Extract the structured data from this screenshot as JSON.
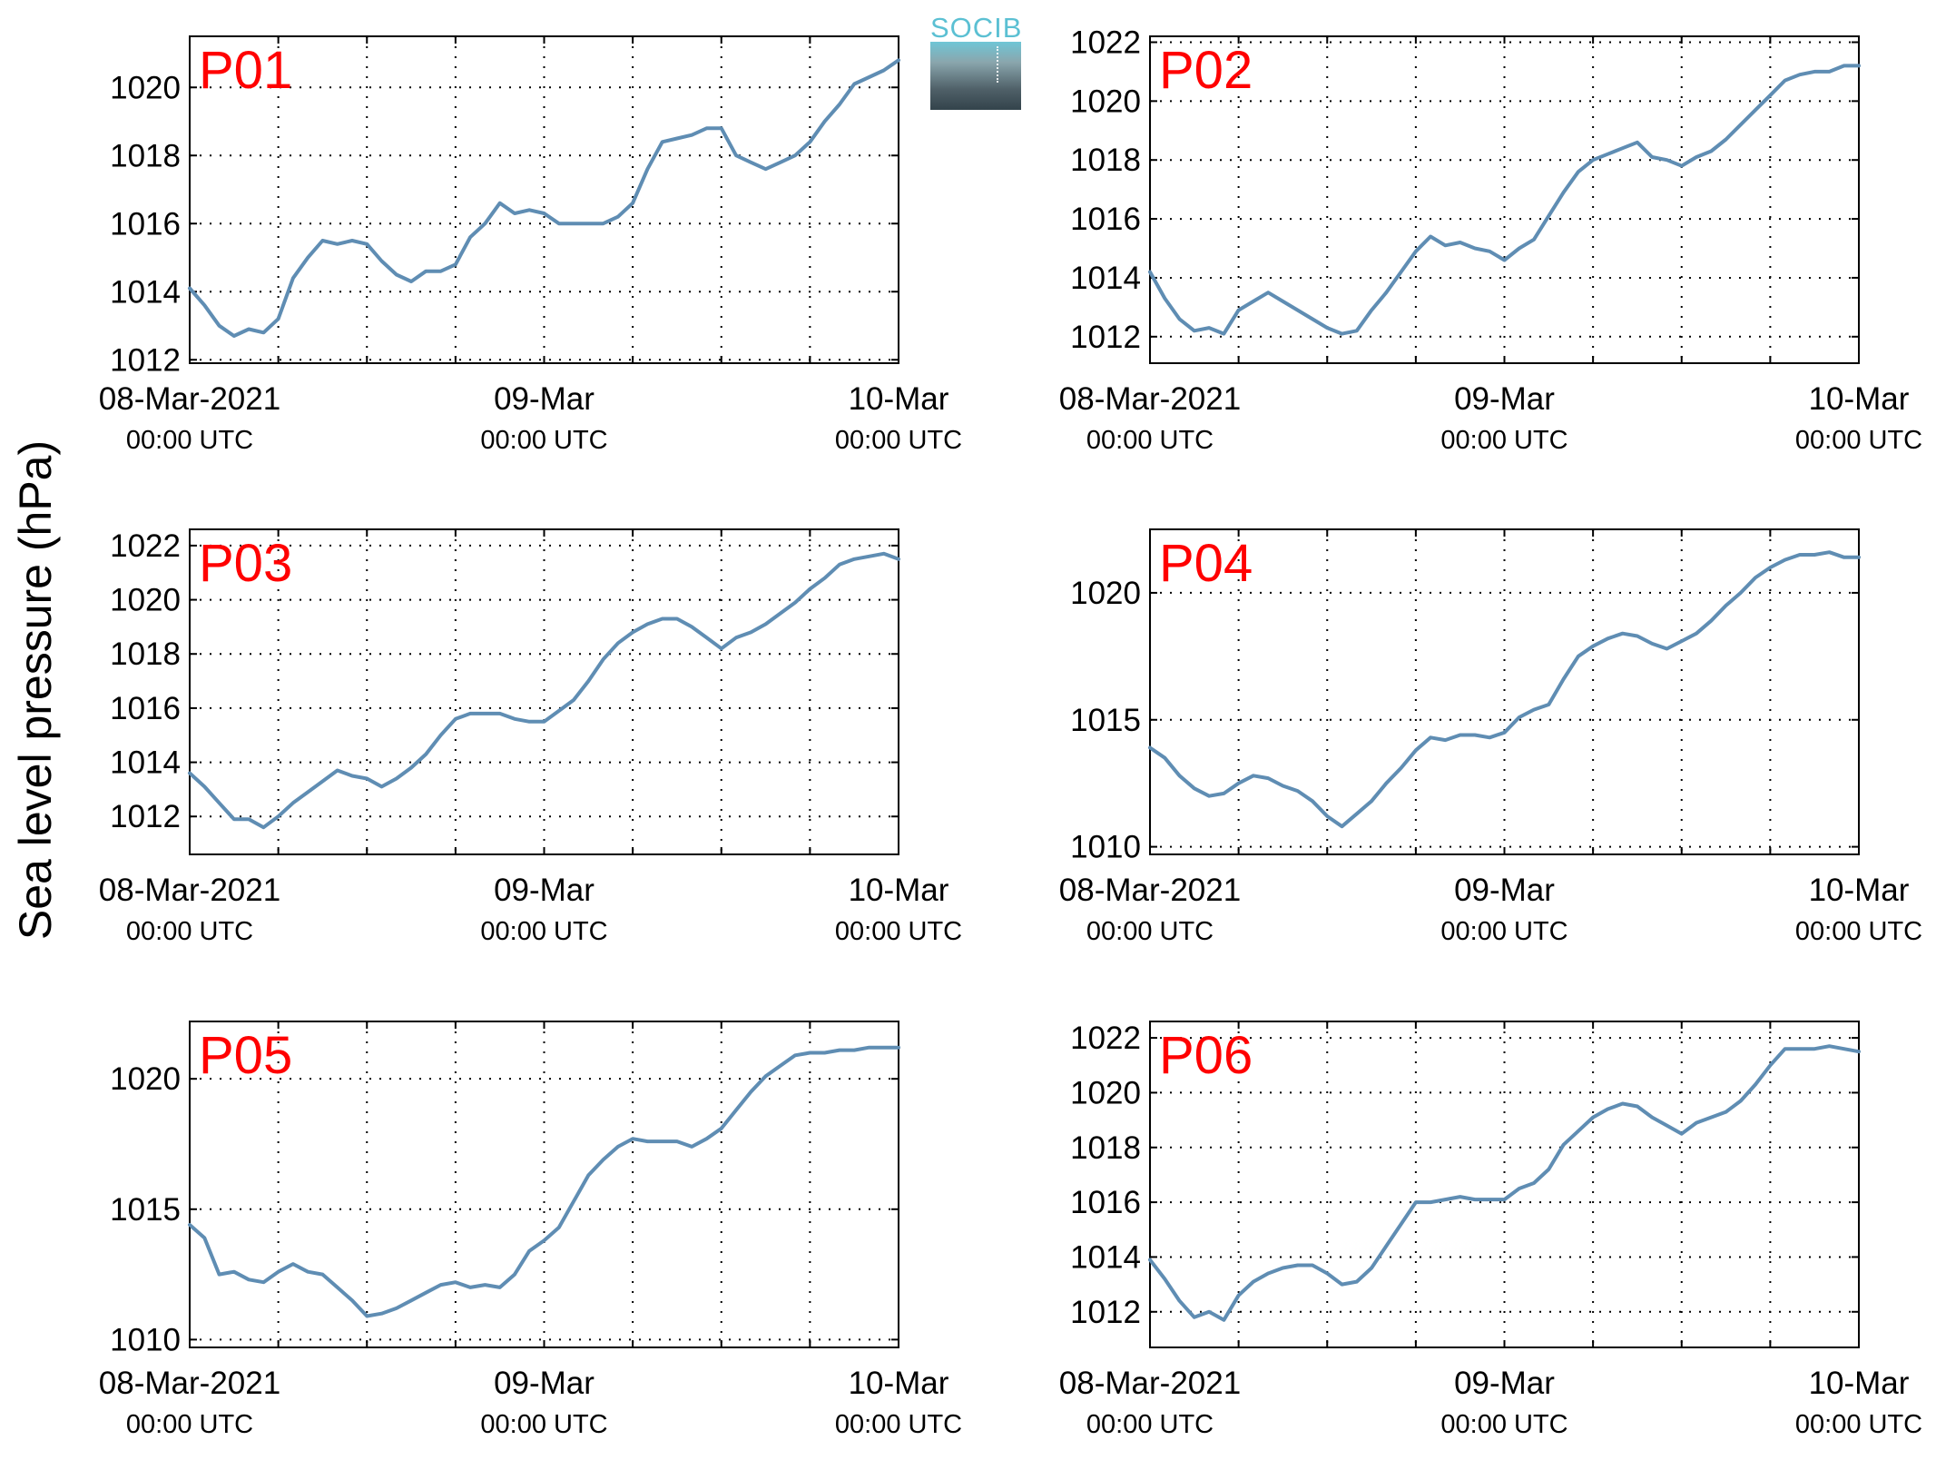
{
  "figure": {
    "ylabel": "Sea level pressure (hPa)",
    "logo_text": "SOCIB"
  },
  "colors": {
    "line": "#5f8db3",
    "panel_label": "#ff0000",
    "grid": "#000000"
  },
  "chart_data": [
    {
      "type": "line",
      "title": "P01",
      "xlabel": "",
      "ylabel": "Sea level pressure (hPa)",
      "x_range_hours": [
        0,
        48
      ],
      "x_ticks": [
        {
          "hour": 0,
          "date": "08-Mar-2021",
          "time": "00:00 UTC"
        },
        {
          "hour": 24,
          "date": "09-Mar",
          "time": "00:00 UTC"
        },
        {
          "hour": 48,
          "date": "10-Mar",
          "time": "00:00 UTC"
        }
      ],
      "ylim": [
        1011.9,
        1021.5
      ],
      "yticks": [
        1012,
        1014,
        1016,
        1018,
        1020
      ],
      "grid": true,
      "x": [
        0,
        1,
        2,
        3,
        4,
        5,
        6,
        7,
        8,
        9,
        10,
        11,
        12,
        13,
        14,
        15,
        16,
        17,
        18,
        19,
        20,
        21,
        22,
        23,
        24,
        25,
        26,
        27,
        28,
        29,
        30,
        31,
        32,
        33,
        34,
        35,
        36,
        37,
        38,
        39,
        40,
        41,
        42,
        43,
        44,
        45,
        46,
        47,
        48
      ],
      "values": [
        1014.1,
        1013.6,
        1013.0,
        1012.7,
        1012.9,
        1012.8,
        1013.2,
        1014.4,
        1015.0,
        1015.5,
        1015.4,
        1015.5,
        1015.4,
        1014.9,
        1014.5,
        1014.3,
        1014.6,
        1014.6,
        1014.8,
        1015.6,
        1016.0,
        1016.6,
        1016.3,
        1016.4,
        1016.3,
        1016.0,
        1016.0,
        1016.0,
        1016.0,
        1016.2,
        1016.6,
        1017.6,
        1018.4,
        1018.5,
        1018.6,
        1018.8,
        1018.8,
        1018.0,
        1017.8,
        1017.6,
        1017.8,
        1018.0,
        1018.4,
        1019.0,
        1019.5,
        1020.1,
        1020.3,
        1020.5,
        1020.8
      ]
    },
    {
      "type": "line",
      "title": "P02",
      "xlabel": "",
      "ylabel": "Sea level pressure (hPa)",
      "x_range_hours": [
        0,
        48
      ],
      "x_ticks": [
        {
          "hour": 0,
          "date": "08-Mar-2021",
          "time": "00:00 UTC"
        },
        {
          "hour": 24,
          "date": "09-Mar",
          "time": "00:00 UTC"
        },
        {
          "hour": 48,
          "date": "10-Mar",
          "time": "00:00 UTC"
        }
      ],
      "ylim": [
        1011.1,
        1022.2
      ],
      "yticks": [
        1012,
        1014,
        1016,
        1018,
        1020,
        1022
      ],
      "grid": true,
      "x": [
        0,
        1,
        2,
        3,
        4,
        5,
        6,
        7,
        8,
        9,
        10,
        11,
        12,
        13,
        14,
        15,
        16,
        17,
        18,
        19,
        20,
        21,
        22,
        23,
        24,
        25,
        26,
        27,
        28,
        29,
        30,
        31,
        32,
        33,
        34,
        35,
        36,
        37,
        38,
        39,
        40,
        41,
        42,
        43,
        44,
        45,
        46,
        47,
        48
      ],
      "values": [
        1014.2,
        1013.3,
        1012.6,
        1012.2,
        1012.3,
        1012.1,
        1012.9,
        1013.2,
        1013.5,
        1013.2,
        1012.9,
        1012.6,
        1012.3,
        1012.1,
        1012.2,
        1012.9,
        1013.5,
        1014.2,
        1014.9,
        1015.4,
        1015.1,
        1015.2,
        1015.0,
        1014.9,
        1014.6,
        1015.0,
        1015.3,
        1016.1,
        1016.9,
        1017.6,
        1018.0,
        1018.2,
        1018.4,
        1018.6,
        1018.1,
        1018.0,
        1017.8,
        1018.1,
        1018.3,
        1018.7,
        1019.2,
        1019.7,
        1020.2,
        1020.7,
        1020.9,
        1021.0,
        1021.0,
        1021.2,
        1021.2
      ]
    },
    {
      "type": "line",
      "title": "P03",
      "xlabel": "",
      "ylabel": "Sea level pressure (hPa)",
      "x_range_hours": [
        0,
        48
      ],
      "x_ticks": [
        {
          "hour": 0,
          "date": "08-Mar-2021",
          "time": "00:00 UTC"
        },
        {
          "hour": 24,
          "date": "09-Mar",
          "time": "00:00 UTC"
        },
        {
          "hour": 48,
          "date": "10-Mar",
          "time": "00:00 UTC"
        }
      ],
      "ylim": [
        1010.6,
        1022.6
      ],
      "yticks": [
        1012,
        1014,
        1016,
        1018,
        1020,
        1022
      ],
      "grid": true,
      "x": [
        0,
        1,
        2,
        3,
        4,
        5,
        6,
        7,
        8,
        9,
        10,
        11,
        12,
        13,
        14,
        15,
        16,
        17,
        18,
        19,
        20,
        21,
        22,
        23,
        24,
        25,
        26,
        27,
        28,
        29,
        30,
        31,
        32,
        33,
        34,
        35,
        36,
        37,
        38,
        39,
        40,
        41,
        42,
        43,
        44,
        45,
        46,
        47,
        48
      ],
      "values": [
        1013.6,
        1013.1,
        1012.5,
        1011.9,
        1011.9,
        1011.6,
        1012.0,
        1012.5,
        1012.9,
        1013.3,
        1013.7,
        1013.5,
        1013.4,
        1013.1,
        1013.4,
        1013.8,
        1014.3,
        1015.0,
        1015.6,
        1015.8,
        1015.8,
        1015.8,
        1015.6,
        1015.5,
        1015.5,
        1015.9,
        1016.3,
        1017.0,
        1017.8,
        1018.4,
        1018.8,
        1019.1,
        1019.3,
        1019.3,
        1019.0,
        1018.6,
        1018.2,
        1018.6,
        1018.8,
        1019.1,
        1019.5,
        1019.9,
        1020.4,
        1020.8,
        1021.3,
        1021.5,
        1021.6,
        1021.7,
        1021.5
      ]
    },
    {
      "type": "line",
      "title": "P04",
      "xlabel": "",
      "ylabel": "Sea level pressure (hPa)",
      "x_range_hours": [
        0,
        48
      ],
      "x_ticks": [
        {
          "hour": 0,
          "date": "08-Mar-2021",
          "time": "00:00 UTC"
        },
        {
          "hour": 24,
          "date": "09-Mar",
          "time": "00:00 UTC"
        },
        {
          "hour": 48,
          "date": "10-Mar",
          "time": "00:00 UTC"
        }
      ],
      "ylim": [
        1009.7,
        1022.5
      ],
      "yticks": [
        1010,
        1015,
        1020
      ],
      "grid": true,
      "x": [
        0,
        1,
        2,
        3,
        4,
        5,
        6,
        7,
        8,
        9,
        10,
        11,
        12,
        13,
        14,
        15,
        16,
        17,
        18,
        19,
        20,
        21,
        22,
        23,
        24,
        25,
        26,
        27,
        28,
        29,
        30,
        31,
        32,
        33,
        34,
        35,
        36,
        37,
        38,
        39,
        40,
        41,
        42,
        43,
        44,
        45,
        46,
        47,
        48
      ],
      "values": [
        1013.9,
        1013.5,
        1012.8,
        1012.3,
        1012.0,
        1012.1,
        1012.5,
        1012.8,
        1012.7,
        1012.4,
        1012.2,
        1011.8,
        1011.2,
        1010.8,
        1011.3,
        1011.8,
        1012.5,
        1013.1,
        1013.8,
        1014.3,
        1014.2,
        1014.4,
        1014.4,
        1014.3,
        1014.5,
        1015.1,
        1015.4,
        1015.6,
        1016.6,
        1017.5,
        1017.9,
        1018.2,
        1018.4,
        1018.3,
        1018.0,
        1017.8,
        1018.1,
        1018.4,
        1018.9,
        1019.5,
        1020.0,
        1020.6,
        1021.0,
        1021.3,
        1021.5,
        1021.5,
        1021.6,
        1021.4,
        1021.4
      ]
    },
    {
      "type": "line",
      "title": "P05",
      "xlabel": "",
      "ylabel": "Sea level pressure (hPa)",
      "x_range_hours": [
        0,
        48
      ],
      "x_ticks": [
        {
          "hour": 0,
          "date": "08-Mar-2021",
          "time": "00:00 UTC"
        },
        {
          "hour": 24,
          "date": "09-Mar",
          "time": "00:00 UTC"
        },
        {
          "hour": 48,
          "date": "10-Mar",
          "time": "00:00 UTC"
        }
      ],
      "ylim": [
        1009.7,
        1022.2
      ],
      "yticks": [
        1010,
        1015,
        1020
      ],
      "grid": true,
      "x": [
        0,
        1,
        2,
        3,
        4,
        5,
        6,
        7,
        8,
        9,
        10,
        11,
        12,
        13,
        14,
        15,
        16,
        17,
        18,
        19,
        20,
        21,
        22,
        23,
        24,
        25,
        26,
        27,
        28,
        29,
        30,
        31,
        32,
        33,
        34,
        35,
        36,
        37,
        38,
        39,
        40,
        41,
        42,
        43,
        44,
        45,
        46,
        47,
        48
      ],
      "values": [
        1014.4,
        1013.9,
        1012.5,
        1012.6,
        1012.3,
        1012.2,
        1012.6,
        1012.9,
        1012.6,
        1012.5,
        1012.0,
        1011.5,
        1010.9,
        1011.0,
        1011.2,
        1011.5,
        1011.8,
        1012.1,
        1012.2,
        1012.0,
        1012.1,
        1012.0,
        1012.5,
        1013.4,
        1013.8,
        1014.3,
        1015.3,
        1016.3,
        1016.9,
        1017.4,
        1017.7,
        1017.6,
        1017.6,
        1017.6,
        1017.4,
        1017.7,
        1018.1,
        1018.8,
        1019.5,
        1020.1,
        1020.5,
        1020.9,
        1021.0,
        1021.0,
        1021.1,
        1021.1,
        1021.2,
        1021.2,
        1021.2
      ]
    },
    {
      "type": "line",
      "title": "P06",
      "xlabel": "",
      "ylabel": "Sea level pressure (hPa)",
      "x_range_hours": [
        0,
        48
      ],
      "x_ticks": [
        {
          "hour": 0,
          "date": "08-Mar-2021",
          "time": "00:00 UTC"
        },
        {
          "hour": 24,
          "date": "09-Mar",
          "time": "00:00 UTC"
        },
        {
          "hour": 48,
          "date": "10-Mar",
          "time": "00:00 UTC"
        }
      ],
      "ylim": [
        1010.7,
        1022.6
      ],
      "yticks": [
        1012,
        1014,
        1016,
        1018,
        1020,
        1022
      ],
      "grid": true,
      "x": [
        0,
        1,
        2,
        3,
        4,
        5,
        6,
        7,
        8,
        9,
        10,
        11,
        12,
        13,
        14,
        15,
        16,
        17,
        18,
        19,
        20,
        21,
        22,
        23,
        24,
        25,
        26,
        27,
        28,
        29,
        30,
        31,
        32,
        33,
        34,
        35,
        36,
        37,
        38,
        39,
        40,
        41,
        42,
        43,
        44,
        45,
        46,
        47,
        48
      ],
      "values": [
        1013.9,
        1013.2,
        1012.4,
        1011.8,
        1012.0,
        1011.7,
        1012.6,
        1013.1,
        1013.4,
        1013.6,
        1013.7,
        1013.7,
        1013.4,
        1013.0,
        1013.1,
        1013.6,
        1014.4,
        1015.2,
        1016.0,
        1016.0,
        1016.1,
        1016.2,
        1016.1,
        1016.1,
        1016.1,
        1016.5,
        1016.7,
        1017.2,
        1018.1,
        1018.6,
        1019.1,
        1019.4,
        1019.6,
        1019.5,
        1019.1,
        1018.8,
        1018.5,
        1018.9,
        1019.1,
        1019.3,
        1019.7,
        1020.3,
        1021.0,
        1021.6,
        1021.6,
        1021.6,
        1021.7,
        1021.6,
        1021.5
      ]
    }
  ]
}
